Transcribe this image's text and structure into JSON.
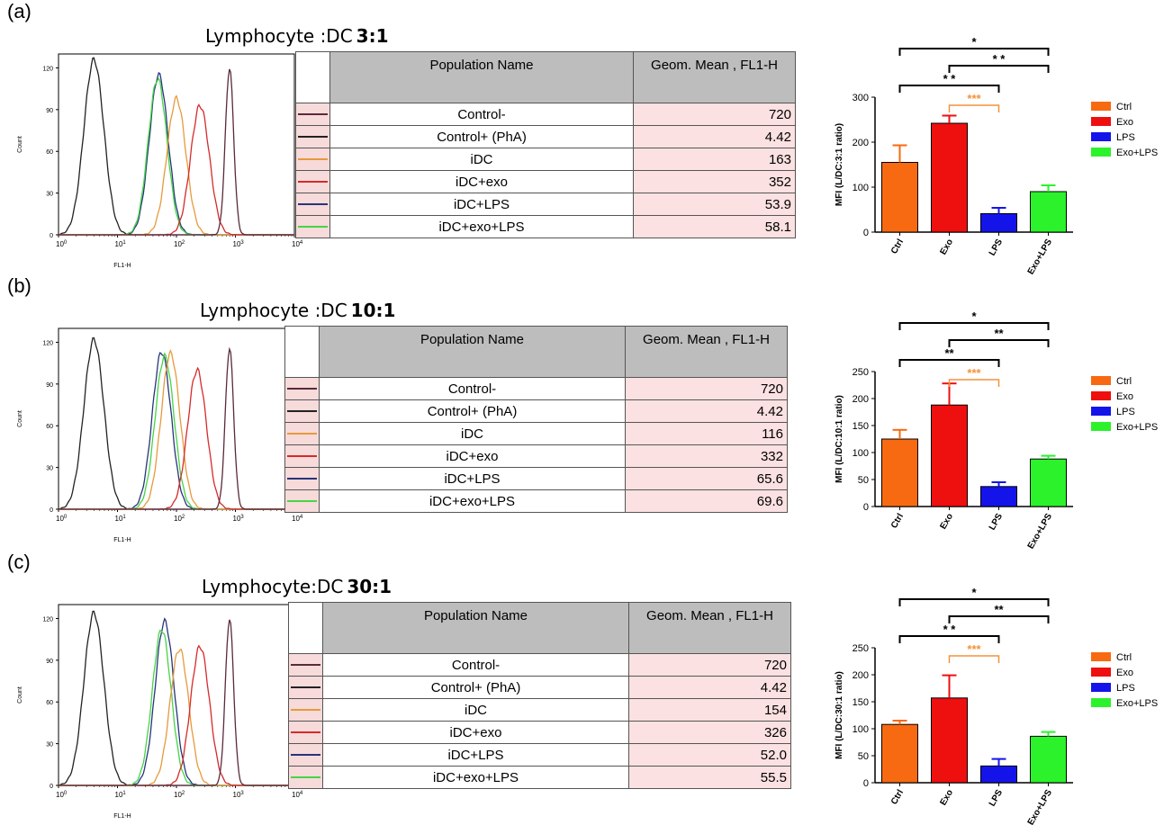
{
  "x_axis_label": "FL1-H",
  "y_axis_label": "Count",
  "table_headers": {
    "name": "Population Name",
    "value": "Geom. Mean , FL1-H"
  },
  "populations": [
    {
      "name": "Control-",
      "color": "#5a2a3a"
    },
    {
      "name": "Control+ (PhA)",
      "color": "#222222"
    },
    {
      "name": "iDC",
      "color": "#e69a3c"
    },
    {
      "name": "iDC+exo",
      "color": "#d62a2a"
    },
    {
      "name": "iDC+LPS",
      "color": "#27357a"
    },
    {
      "name": "iDC+exo+LPS",
      "color": "#46d446"
    }
  ],
  "bar_colors": {
    "Ctrl": "#f76a12",
    "Exo": "#ee0f0f",
    "LPS": "#1414ea",
    "Exo+LPS": "#2cf22c"
  },
  "legend": [
    "Ctrl",
    "Exo",
    "LPS",
    "Exo+LPS"
  ],
  "panels": [
    {
      "label": "(a)",
      "title_prefix": "Lymphocyte :DC",
      "ratio": "3:1",
      "geo_means": [
        "720",
        "4.42",
        "163",
        "352",
        "53.9",
        "58.1"
      ],
      "chart_data": {
        "type": "bar",
        "categories": [
          "Ctrl",
          "Exo",
          "LPS",
          "Exo+LPS"
        ],
        "values": [
          155,
          242,
          41,
          90
        ],
        "errors": [
          38,
          17,
          13,
          14
        ],
        "ylabel": "MFI (L/DC:3:1 ratio)",
        "ylim": [
          0,
          300
        ],
        "yticks": [
          0,
          100,
          200,
          300
        ],
        "significance": [
          {
            "from": "Ctrl",
            "to": "Exo+LPS",
            "label": "*",
            "color": "black"
          },
          {
            "from": "Exo",
            "to": "Exo+LPS",
            "label": "* *",
            "color": "black"
          },
          {
            "from": "Ctrl",
            "to": "LPS",
            "label": "* *",
            "color": "black"
          },
          {
            "from": "Exo",
            "to": "LPS",
            "label": "***",
            "color": "orange"
          }
        ]
      },
      "histogram": {
        "ylim": [
          0,
          130
        ],
        "yticks": [
          0,
          30,
          60,
          90,
          120
        ],
        "peaks": [
          {
            "series": "Control+ (PhA)",
            "log_center": 0.6,
            "height": 126
          },
          {
            "series": "iDC+LPS",
            "log_center": 1.7,
            "height": 115
          },
          {
            "series": "iDC+exo+LPS",
            "log_center": 1.68,
            "height": 112
          },
          {
            "series": "iDC",
            "log_center": 2.0,
            "height": 98
          },
          {
            "series": "iDC+exo",
            "log_center": 2.4,
            "height": 93
          },
          {
            "series": "Control-",
            "log_center": 2.9,
            "height": 120
          }
        ]
      }
    },
    {
      "label": "(b)",
      "title_prefix": "Lymphocyte :DC",
      "ratio": "10:1",
      "geo_means": [
        "720",
        "4.42",
        "116",
        "332",
        "65.6",
        "69.6"
      ],
      "chart_data": {
        "type": "bar",
        "categories": [
          "Ctrl",
          "Exo",
          "LPS",
          "Exo+LPS"
        ],
        "values": [
          125,
          188,
          37,
          88
        ],
        "errors": [
          17,
          40,
          8,
          6
        ],
        "ylabel": "MFI (L/DC:10:1 ratio)",
        "ylim": [
          0,
          250
        ],
        "yticks": [
          0,
          50,
          100,
          150,
          200,
          250
        ],
        "significance": [
          {
            "from": "Ctrl",
            "to": "Exo+LPS",
            "label": "*",
            "color": "black"
          },
          {
            "from": "Exo",
            "to": "Exo+LPS",
            "label": "**",
            "color": "black"
          },
          {
            "from": "Ctrl",
            "to": "LPS",
            "label": "**",
            "color": "black"
          },
          {
            "from": "Exo",
            "to": "LPS",
            "label": "***",
            "color": "orange"
          }
        ]
      },
      "histogram": {
        "ylim": [
          0,
          130
        ],
        "yticks": [
          0,
          30,
          60,
          90,
          120
        ],
        "peaks": [
          {
            "series": "Control+ (PhA)",
            "log_center": 0.6,
            "height": 122
          },
          {
            "series": "iDC+LPS",
            "log_center": 1.75,
            "height": 113
          },
          {
            "series": "iDC+exo+LPS",
            "log_center": 1.8,
            "height": 110
          },
          {
            "series": "iDC",
            "log_center": 1.9,
            "height": 112
          },
          {
            "series": "iDC+exo",
            "log_center": 2.35,
            "height": 100
          },
          {
            "series": "Control-",
            "log_center": 2.9,
            "height": 116
          }
        ]
      }
    },
    {
      "label": "(c)",
      "title_prefix": "Lymphocyte:DC",
      "ratio": "30:1",
      "geo_means": [
        "720",
        "4.42",
        "154",
        "326",
        "52.0",
        "55.5"
      ],
      "chart_data": {
        "type": "bar",
        "categories": [
          "Ctrl",
          "Exo",
          "LPS",
          "Exo+LPS"
        ],
        "values": [
          108,
          157,
          31,
          86
        ],
        "errors": [
          7,
          42,
          13,
          8
        ],
        "ylabel": "MFI (L/DC:30:1 ratio)",
        "ylim": [
          0,
          250
        ],
        "yticks": [
          0,
          50,
          100,
          150,
          200,
          250
        ],
        "significance": [
          {
            "from": "Ctrl",
            "to": "Exo+LPS",
            "label": "*",
            "color": "black"
          },
          {
            "from": "Exo",
            "to": "Exo+LPS",
            "label": "**",
            "color": "black"
          },
          {
            "from": "Ctrl",
            "to": "LPS",
            "label": "* *",
            "color": "black"
          },
          {
            "from": "Exo",
            "to": "LPS",
            "label": "***",
            "color": "orange"
          }
        ]
      },
      "histogram": {
        "ylim": [
          0,
          130
        ],
        "yticks": [
          0,
          30,
          60,
          90,
          120
        ],
        "peaks": [
          {
            "series": "Control+ (PhA)",
            "log_center": 0.6,
            "height": 124
          },
          {
            "series": "iDC+LPS",
            "log_center": 1.8,
            "height": 118
          },
          {
            "series": "iDC+exo+LPS",
            "log_center": 1.75,
            "height": 112
          },
          {
            "series": "iDC",
            "log_center": 2.05,
            "height": 98
          },
          {
            "series": "iDC+exo",
            "log_center": 2.4,
            "height": 100
          },
          {
            "series": "Control-",
            "log_center": 2.9,
            "height": 120
          }
        ]
      }
    }
  ]
}
